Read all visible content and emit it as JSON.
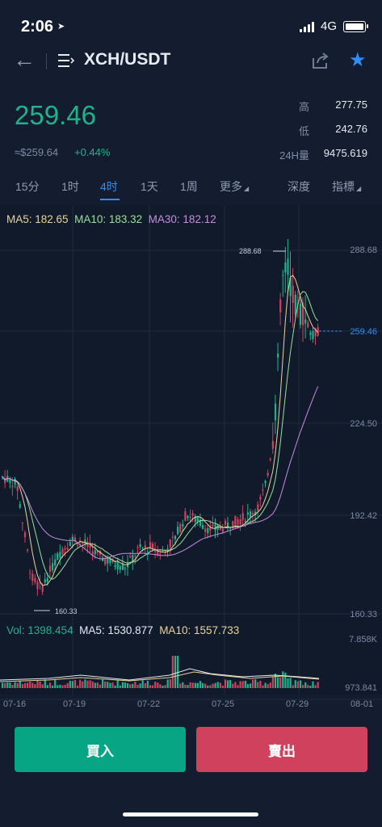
{
  "status_bar": {
    "time": "2:06",
    "network": "4G"
  },
  "header": {
    "pair": "XCH/USDT"
  },
  "ticker": {
    "last_price": "259.46",
    "fiat_value": "≈$259.64",
    "change": "+0.44%",
    "high_label": "高",
    "high": "277.75",
    "low_label": "低",
    "low": "242.76",
    "vol_label": "24H量",
    "vol": "9475.619"
  },
  "tabs": {
    "t15m": "15分",
    "t1h": "1时",
    "t4h": "4时",
    "t1d": "1天",
    "t1w": "1周",
    "more": "更多",
    "depth": "深度",
    "indicators": "指標"
  },
  "ma": {
    "ma5": "MA5: 182.65",
    "ma10": "MA10: 183.32",
    "ma30": "MA30: 182.12"
  },
  "volume": {
    "vol": "Vol: 1398.454",
    "ma5": "MA5: 1530.877",
    "ma10": "MA10: 1557.733"
  },
  "chart_data": {
    "type": "candlestick",
    "y_axis_labels": [
      "288.68",
      "259.46",
      "224.50",
      "192.42",
      "160.33"
    ],
    "current_price_label": "259.46",
    "max_label": "288.68",
    "min_label": "160.33",
    "volume_axis_labels": [
      "7.858K",
      "973.841"
    ],
    "x_labels": [
      "07-16",
      "07-19",
      "07-22",
      "07-25",
      "07-29",
      "08-01"
    ],
    "ylim": [
      160.33,
      288.68
    ],
    "colors": {
      "up": "#20b28c",
      "down": "#d0415d",
      "ma5": "#ead39a",
      "ma10": "#9ae09a",
      "ma30": "#c58ee0"
    }
  },
  "actions": {
    "buy": "買入",
    "sell": "賣出"
  }
}
